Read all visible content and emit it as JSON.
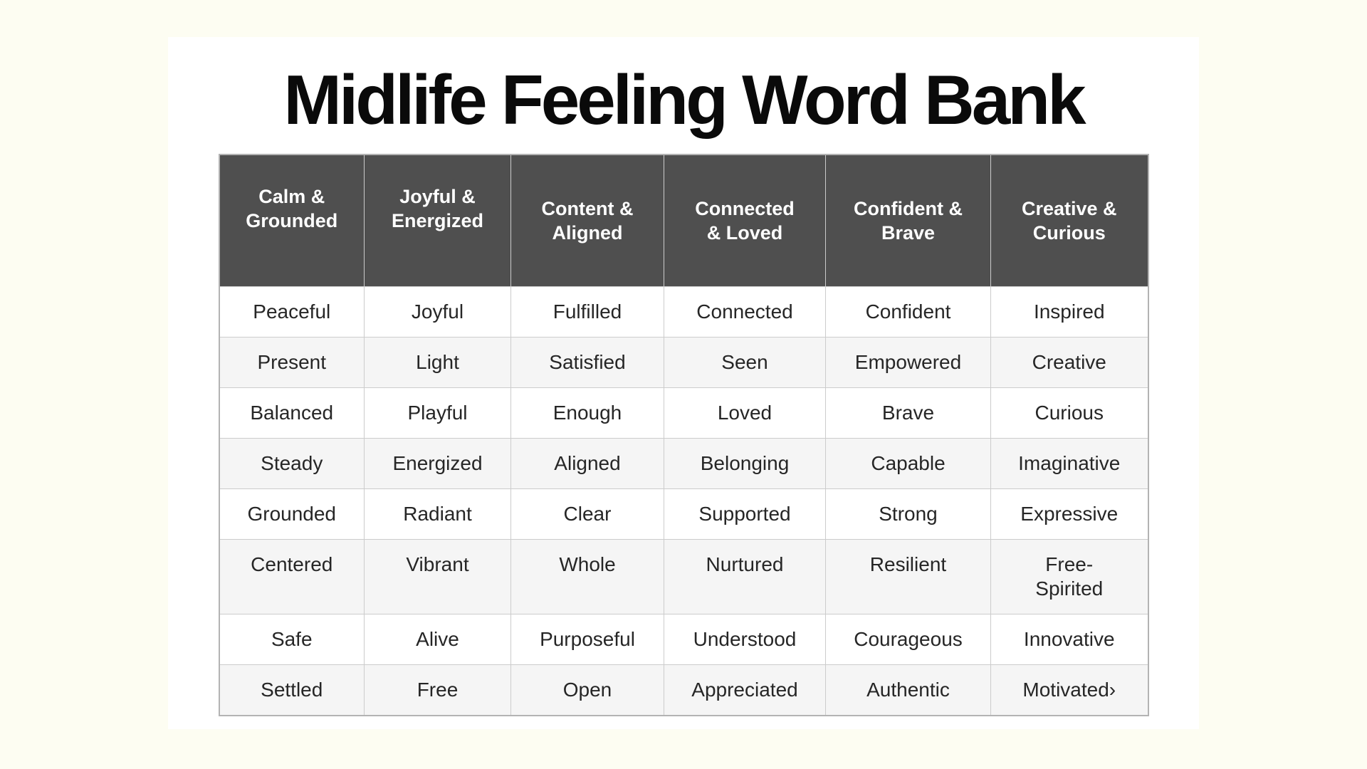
{
  "title": "Midlife Feeling Word Bank",
  "colors": {
    "page_bg": "#FDFDF2",
    "card_bg": "#FFFFFF",
    "title_color": "#0A0A0A",
    "header_bg": "#4F4F4F",
    "header_text": "#FFFFFF",
    "alt_row_bg": "#F5F5F5",
    "border_color": "#CCCCCC",
    "cell_text": "#262626"
  },
  "table": {
    "columns": [
      "Calm &\nGrounded",
      "Joyful &\nEnergized",
      "Content &\nAligned",
      "Connected\n& Loved",
      "Confident &\nBrave",
      "Creative &\nCurious"
    ],
    "rows": [
      [
        "Peaceful",
        "Joyful",
        "Fulfilled",
        "Connected",
        "Confident",
        "Inspired"
      ],
      [
        "Present",
        "Light",
        "Satisfied",
        "Seen",
        "Empowered",
        "Creative"
      ],
      [
        "Balanced",
        "Playful",
        "Enough",
        "Loved",
        "Brave",
        "Curious"
      ],
      [
        "Steady",
        "Energized",
        "Aligned",
        "Belonging",
        "Capable",
        "Imaginative"
      ],
      [
        "Grounded",
        "Radiant",
        "Clear",
        "Supported",
        "Strong",
        "Expressive"
      ],
      [
        "Centered",
        "Vibrant",
        "Whole",
        "Nurtured",
        "Resilient",
        "Free-\nSpirited"
      ],
      [
        "Safe",
        "Alive",
        "Purposeful",
        "Understood",
        "Courageous",
        "Innovative"
      ],
      [
        "Settled",
        "Free",
        "Open",
        "Appreciated",
        "Authentic",
        "Motivated›"
      ]
    ]
  }
}
